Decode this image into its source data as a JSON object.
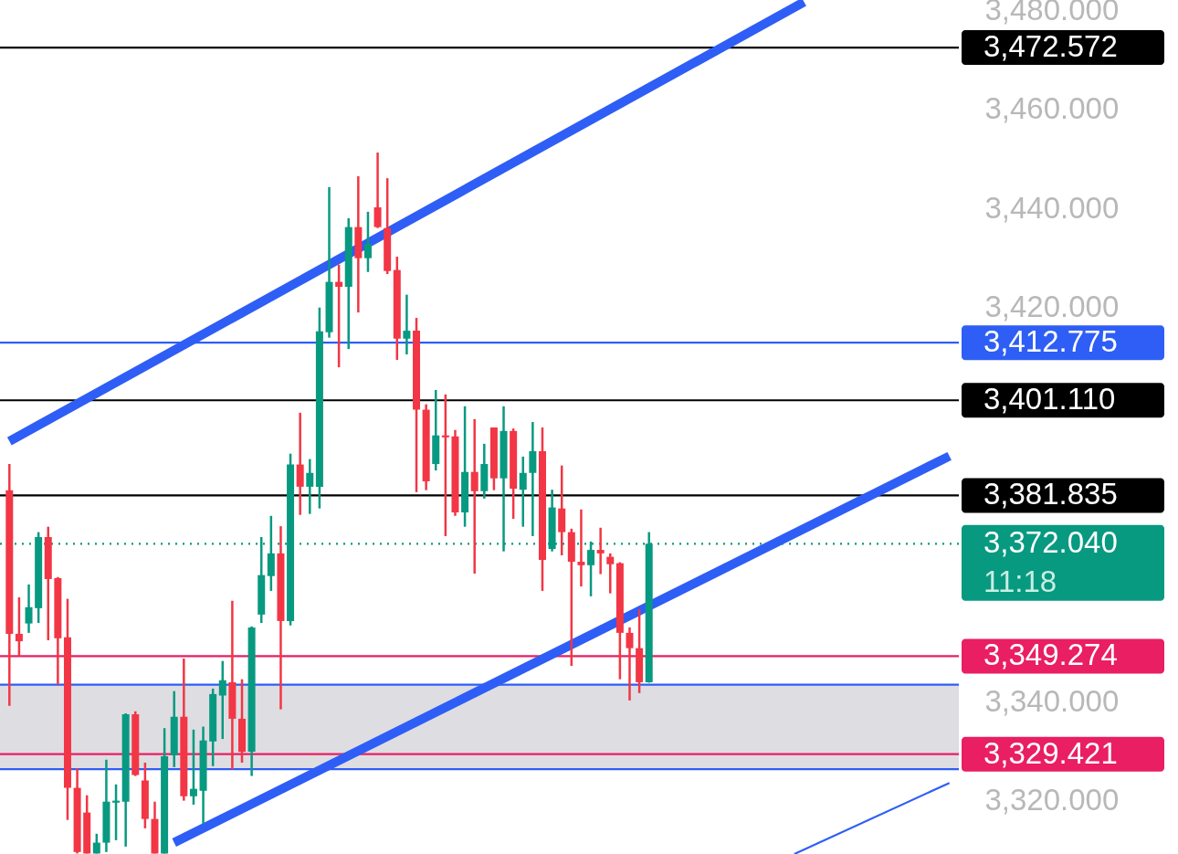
{
  "chart_data": {
    "type": "candlestick",
    "categories": [
      null,
      null,
      null,
      null,
      null,
      null,
      null,
      null,
      null,
      null,
      null,
      null,
      null,
      null,
      null,
      null,
      null,
      null,
      null,
      null,
      null,
      null,
      null,
      null,
      null,
      null,
      null,
      null,
      null,
      null,
      null,
      null,
      null,
      null,
      null,
      null,
      null,
      null,
      null,
      null,
      null,
      null,
      null,
      null,
      null,
      null,
      null,
      null,
      null,
      null,
      null,
      null,
      null,
      null,
      null,
      null,
      null,
      null,
      null,
      null,
      null,
      null,
      null,
      null,
      null,
      null,
      null,
      null,
      null,
      null,
      null,
      null,
      null,
      null,
      null,
      null,
      null,
      null,
      null,
      null,
      null,
      null,
      null,
      null,
      null,
      null,
      null,
      null,
      null,
      null,
      null,
      null,
      null,
      null,
      null,
      null,
      null,
      null
    ],
    "ohlc": [
      [
        3382.9,
        3388.2,
        3339.2,
        3353.8
      ],
      [
        3353.8,
        3361.2,
        3349.2,
        3352.3
      ],
      [
        3355.9,
        3363.8,
        3354.0,
        3359.2
      ],
      [
        3359.0,
        3374.4,
        3356.0,
        3373.4
      ],
      [
        3373.4,
        3375.5,
        3352.5,
        3364.9
      ],
      [
        3365.1,
        3365.3,
        3343.5,
        3352.9
      ],
      [
        3353.1,
        3360.9,
        3316.1,
        3322.6
      ],
      [
        3322.6,
        3326.6,
        3309.3,
        3309.6
      ],
      [
        3317.6,
        3321.1,
        3309.3,
        3309.3
      ],
      [
        3309.3,
        3313.3,
        3309.3,
        3311.5
      ],
      [
        3311.5,
        3328.3,
        3309.6,
        3319.8
      ],
      [
        3319.6,
        3323.3,
        3312.0,
        3320.0
      ],
      [
        3319.8,
        3337.7,
        3310.7,
        3337.5
      ],
      [
        3337.5,
        3338.1,
        3325.0,
        3325.2
      ],
      [
        3324.1,
        3327.7,
        3314.4,
        3316.3
      ],
      [
        3316.3,
        3319.8,
        3309.3,
        3309.3
      ],
      [
        3309.3,
        3334.7,
        3309.3,
        3329.0
      ],
      [
        3329.2,
        3342.2,
        3326.8,
        3337.0
      ],
      [
        3337.0,
        3348.8,
        3320.0,
        3320.9
      ],
      [
        3320.9,
        3334.4,
        3319.2,
        3322.4
      ],
      [
        3322.0,
        3335.0,
        3315.3,
        3332.2
      ],
      [
        3332.0,
        3342.7,
        3327.0,
        3341.6
      ],
      [
        3341.3,
        3348.3,
        3332.5,
        3344.4
      ],
      [
        3344.0,
        3360.5,
        3326.3,
        3336.6
      ],
      [
        3336.6,
        3344.6,
        3327.7,
        3329.9
      ],
      [
        3329.9,
        3355.3,
        3325.0,
        3355.1
      ],
      [
        3357.7,
        3373.4,
        3356.0,
        3365.7
      ],
      [
        3365.5,
        3377.7,
        3362.5,
        3370.1
      ],
      [
        3370.1,
        3375.6,
        3338.5,
        3356.4
      ],
      [
        3356.4,
        3390.3,
        3355.5,
        3388.1
      ],
      [
        3388.1,
        3398.6,
        3377.9,
        3383.6
      ],
      [
        3383.6,
        3389.2,
        3378.1,
        3386.4
      ],
      [
        3383.6,
        3419.9,
        3379.2,
        3415.1
      ],
      [
        3414.9,
        3444.3,
        3413.8,
        3425.1
      ],
      [
        3425.1,
        3428.6,
        3407.8,
        3424.1
      ],
      [
        3424.1,
        3438.0,
        3411.5,
        3436.2
      ],
      [
        3436.2,
        3446.5,
        3418.9,
        3429.9
      ],
      [
        3429.9,
        3439.3,
        3427.1,
        3432.8
      ],
      [
        3440.2,
        3451.3,
        3436.0,
        3436.2
      ],
      [
        3436.0,
        3446.1,
        3426.7,
        3427.3
      ],
      [
        3427.5,
        3430.2,
        3409.3,
        3413.6
      ],
      [
        3413.6,
        3422.5,
        3410.4,
        3415.2
      ],
      [
        3415.2,
        3417.8,
        3382.5,
        3399.2
      ],
      [
        3399.2,
        3400.3,
        3382.9,
        3384.7
      ],
      [
        3388.2,
        3403.2,
        3386.9,
        3394.0
      ],
      [
        3394.0,
        3402.3,
        3373.6,
        3393.6
      ],
      [
        3393.8,
        3395.1,
        3377.7,
        3378.4
      ],
      [
        3378.4,
        3399.9,
        3375.5,
        3386.6
      ],
      [
        3386.6,
        3397.3,
        3366.0,
        3382.7
      ],
      [
        3382.7,
        3392.3,
        3381.2,
        3388.2
      ],
      [
        3395.6,
        3395.6,
        3382.9,
        3385.3
      ],
      [
        3385.3,
        3399.9,
        3370.5,
        3394.9
      ],
      [
        3394.9,
        3395.4,
        3377.1,
        3383.2
      ],
      [
        3383.0,
        3389.7,
        3375.5,
        3386.4
      ],
      [
        3386.4,
        3396.7,
        3373.6,
        3390.8
      ],
      [
        3390.8,
        3395.6,
        3362.5,
        3368.8
      ],
      [
        3371.0,
        3383.0,
        3370.5,
        3379.4
      ],
      [
        3379.2,
        3387.9,
        3369.7,
        3374.4
      ],
      [
        3374.4,
        3375.1,
        3347.3,
        3368.4
      ],
      [
        3368.4,
        3379.0,
        3363.4,
        3367.7
      ],
      [
        3367.7,
        3372.5,
        3361.4,
        3370.8
      ],
      [
        3370.8,
        3375.3,
        3365.9,
        3370.1
      ],
      [
        3369.4,
        3370.1,
        3362.0,
        3367.9
      ],
      [
        3368.1,
        3368.3,
        3344.6,
        3354.0
      ],
      [
        3354.0,
        3355.1,
        3340.3,
        3350.9
      ],
      [
        3350.9,
        3358.8,
        3341.8,
        3344.0
      ],
      [
        3344.0,
        3374.4,
        3343.9,
        3372.04
      ],
      null,
      null,
      null,
      null,
      null,
      null,
      null,
      null,
      null,
      null,
      null,
      null,
      null,
      null,
      null,
      null,
      null,
      null,
      null,
      null,
      null,
      null,
      null,
      null,
      null,
      null,
      null,
      null,
      null,
      null,
      null
    ],
    "colors": [
      "#f23645",
      "#f23645",
      "#089981",
      "#089981",
      "#f23645",
      "#f23645",
      "#f23645",
      "#f23645",
      "#f23645",
      "#089981",
      "#089981",
      "#089981",
      "#089981",
      "#f23645",
      "#f23645",
      "#f23645",
      "#089981",
      "#089981",
      "#f23645",
      "#089981",
      "#089981",
      "#089981",
      "#089981",
      "#f23645",
      "#f23645",
      "#089981",
      "#089981",
      "#089981",
      "#f23645",
      "#089981",
      "#f23645",
      "#089981",
      "#089981",
      "#089981",
      "#f23645",
      "#089981",
      "#f23645",
      "#089981",
      "#f23645",
      "#f23645",
      "#f23645",
      "#089981",
      "#f23645",
      "#f23645",
      "#089981",
      "#f23645",
      "#f23645",
      "#089981",
      "#f23645",
      "#089981",
      "#f23645",
      "#089981",
      "#f23645",
      "#089981",
      "#089981",
      "#f23645",
      "#089981",
      "#f23645",
      "#f23645",
      "#f23645",
      "#089981",
      "#f23645",
      "#f23645",
      "#f23645",
      "#f23645",
      "#f23645",
      "#089981",
      null,
      null,
      null,
      null,
      null,
      null,
      null,
      null,
      null,
      null,
      null,
      null,
      null,
      null,
      null,
      null,
      null,
      null,
      null,
      null,
      null,
      null,
      null,
      null,
      null,
      null,
      null,
      null,
      null,
      null,
      null
    ],
    "series": [
      {
        "type": "line",
        "color": "#2e5ef5",
        "line_style": "solid",
        "values": [
          3392.8,
          null,
          null,
          null,
          null,
          null,
          null,
          null,
          null,
          null,
          null,
          null,
          null,
          null,
          null,
          null,
          null,
          null,
          null,
          null,
          null,
          null,
          null,
          null,
          null,
          null,
          null,
          null,
          null,
          null,
          null,
          null,
          null,
          null,
          null,
          null,
          null,
          null,
          null,
          null,
          null,
          null,
          null,
          null,
          null,
          null,
          null,
          null,
          null,
          null,
          null,
          null,
          null,
          null,
          null,
          null,
          null,
          null,
          null,
          null,
          null,
          null,
          null,
          null,
          null,
          null,
          null,
          null,
          null,
          null,
          null,
          null,
          null,
          null,
          null,
          null,
          null,
          null,
          null,
          null,
          null,
          null,
          3481.8,
          null,
          null,
          null,
          null,
          null,
          null,
          null,
          null,
          null,
          null,
          null,
          null,
          null,
          null,
          null
        ]
      },
      {
        "type": "line",
        "color": "#2e5ef5",
        "line_style": "solid",
        "values": [
          null,
          null,
          null,
          null,
          null,
          null,
          null,
          null,
          null,
          null,
          null,
          null,
          null,
          null,
          null,
          null,
          null,
          3311.5,
          null,
          null,
          null,
          null,
          null,
          null,
          null,
          null,
          null,
          null,
          null,
          null,
          null,
          null,
          null,
          null,
          null,
          null,
          null,
          null,
          null,
          null,
          null,
          null,
          null,
          null,
          null,
          null,
          null,
          null,
          null,
          null,
          null,
          null,
          null,
          null,
          null,
          null,
          null,
          null,
          null,
          null,
          null,
          null,
          null,
          null,
          null,
          null,
          null,
          null,
          null,
          null,
          null,
          null,
          null,
          null,
          null,
          null,
          null,
          null,
          null,
          null,
          null,
          null,
          null,
          null,
          null,
          null,
          null,
          null,
          null,
          null,
          null,
          null,
          null,
          null,
          null,
          null,
          null,
          3389.8
        ]
      },
      {
        "type": "line",
        "color": "#2e5ef5",
        "line_style": "solid",
        "values": [
          null,
          null,
          null,
          null,
          null,
          null,
          null,
          null,
          null,
          null,
          null,
          null,
          null,
          null,
          null,
          null,
          null,
          null,
          null,
          null,
          null,
          null,
          null,
          null,
          null,
          null,
          null,
          null,
          null,
          null,
          null,
          null,
          null,
          null,
          null,
          null,
          null,
          null,
          null,
          null,
          null,
          null,
          null,
          null,
          null,
          null,
          null,
          null,
          null,
          null,
          null,
          null,
          null,
          null,
          null,
          null,
          null,
          null,
          null,
          null,
          null,
          null,
          null,
          null,
          null,
          null,
          null,
          null,
          null,
          null,
          null,
          null,
          null,
          null,
          null,
          null,
          null,
          null,
          null,
          null,
          null,
          3309.2,
          null,
          null,
          null,
          null,
          null,
          null,
          null,
          null,
          null,
          null,
          null,
          null,
          null,
          null,
          null,
          3323.6
        ]
      }
    ],
    "bands": [
      {
        "axis": "y",
        "from": 3326.4,
        "to": 3343.5,
        "color": "#dedde2"
      }
    ],
    "ref_lines": [
      {
        "axis": "y",
        "value": 3472.572,
        "label": "3,472.572",
        "color": "#000000",
        "line_style": "solid"
      },
      {
        "axis": "y",
        "value": 3412.775,
        "label": "3,412.775",
        "color": "#2e5ef5",
        "line_style": "solid"
      },
      {
        "axis": "y",
        "value": 3401.11,
        "label": "3,401.110",
        "color": "#000000",
        "line_style": "solid"
      },
      {
        "axis": "y",
        "value": 3381.835,
        "label": "3,381.835",
        "color": "#000000",
        "line_style": "solid"
      },
      {
        "axis": "y",
        "value": 3372.04,
        "label": "3,372.040\n11:18",
        "color": "#089981",
        "line_style": "dotted"
      },
      {
        "axis": "y",
        "value": 3349.274,
        "label": "3,349.274",
        "color": "#e91e63",
        "line_style": "solid"
      },
      {
        "axis": "y",
        "value": 3343.5,
        "color": "#2e5ef5",
        "line_style": "solid"
      },
      {
        "axis": "y",
        "value": 3329.421,
        "label": "3,329.421",
        "color": "#e91e63",
        "line_style": "solid"
      },
      {
        "axis": "y",
        "value": 3326.4,
        "color": "#2e5ef5",
        "line_style": "solid"
      }
    ],
    "ylim": [
      3309.2,
      3482.2
    ],
    "yticks": [
      {
        "value": 3320,
        "label": "3,320.000"
      },
      {
        "value": 3340,
        "label": "3,340.000"
      },
      {
        "value": 3420,
        "label": "3,420.000"
      },
      {
        "value": 3440,
        "label": "3,440.000"
      },
      {
        "value": 3460,
        "label": "3,460.000"
      },
      {
        "value": 3480,
        "label": "3,480.000"
      }
    ],
    "tick_labels": "y",
    "grid": false
  }
}
